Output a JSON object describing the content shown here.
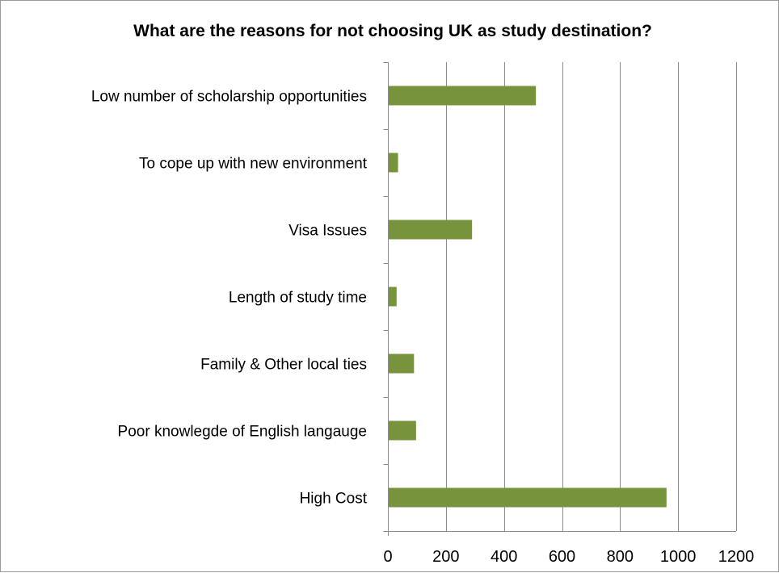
{
  "chart_data": {
    "type": "bar",
    "orientation": "horizontal",
    "title": "What are the reasons for not choosing UK as study destination?",
    "xlabel": "",
    "ylabel": "",
    "categories": [
      "Low number of scholarship opportunities",
      "To cope up with new environment",
      "Visa Issues",
      "Length of study time",
      "Family & Other local ties",
      "Poor knowlegde of English langauge",
      "High Cost"
    ],
    "values": [
      510,
      35,
      290,
      30,
      90,
      97,
      960
    ],
    "xlim": [
      0,
      1200
    ],
    "ticks": [
      0,
      200,
      400,
      600,
      800,
      1000,
      1200
    ],
    "tick_labels": [
      "0",
      "200",
      "400",
      "600",
      "800",
      "1000",
      "1200"
    ],
    "grid": "vertical",
    "legend": "none",
    "bar_color": "#77933c",
    "grid_color": "#8c8c8c"
  }
}
